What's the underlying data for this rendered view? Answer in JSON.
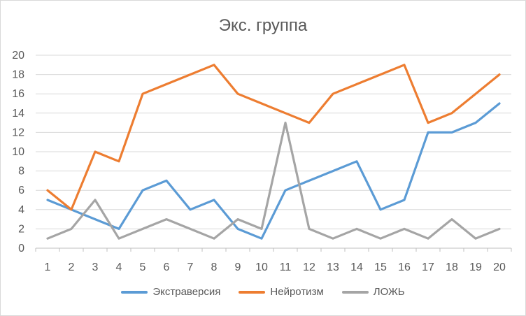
{
  "chart_data": {
    "type": "line",
    "title": "Экс. группа",
    "xlabel": "",
    "ylabel": "",
    "x": [
      1,
      2,
      3,
      4,
      5,
      6,
      7,
      8,
      9,
      10,
      11,
      12,
      13,
      14,
      15,
      16,
      17,
      18,
      19,
      20
    ],
    "ylim": [
      0,
      20
    ],
    "yticks": [
      0,
      2,
      4,
      6,
      8,
      10,
      12,
      14,
      16,
      18,
      20
    ],
    "grid": true,
    "legend_position": "bottom",
    "series": [
      {
        "name": "Экстраверсия",
        "color": "#5B9BD5",
        "values": [
          5,
          4,
          3,
          2,
          6,
          7,
          4,
          5,
          2,
          1,
          6,
          7,
          8,
          9,
          4,
          5,
          12,
          12,
          13,
          15
        ]
      },
      {
        "name": "Нейротизм",
        "color": "#ED7D31",
        "values": [
          6,
          4,
          10,
          9,
          16,
          17,
          18,
          19,
          16,
          15,
          14,
          13,
          16,
          17,
          18,
          19,
          13,
          14,
          16,
          18
        ]
      },
      {
        "name": "ЛОЖЬ",
        "color": "#A5A5A5",
        "values": [
          1,
          2,
          5,
          1,
          2,
          3,
          2,
          1,
          3,
          2,
          13,
          2,
          1,
          2,
          1,
          2,
          1,
          3,
          1,
          2
        ]
      }
    ]
  }
}
